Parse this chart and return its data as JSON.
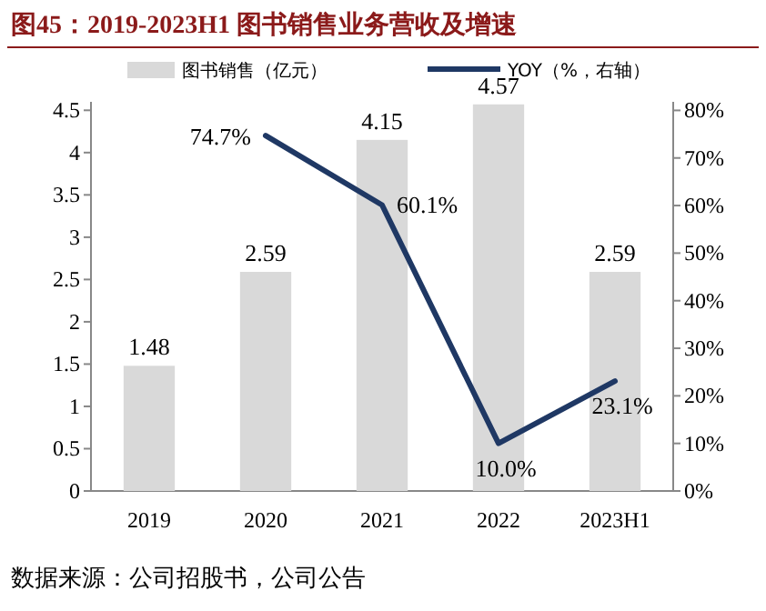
{
  "chart_data": {
    "type": "bar",
    "title": "图45：2019-2023H1 图书销售业务营收及增速",
    "categories": [
      "2019",
      "2020",
      "2021",
      "2022",
      "2023H1"
    ],
    "series": [
      {
        "name": "图书销售（亿元）",
        "color": "#d9d9d9",
        "values": [
          1.48,
          2.59,
          4.15,
          4.57,
          2.59
        ],
        "value_labels": [
          "1.48",
          "2.59",
          "4.15",
          "4.57",
          "2.59"
        ]
      },
      {
        "name": "YOY（%，右轴）",
        "type": "line",
        "axis": "y2",
        "color": "#1f3864",
        "values": [
          null,
          74.7,
          60.1,
          10.0,
          23.1
        ],
        "value_labels": [
          null,
          "74.7%",
          "60.1%",
          "10.0%",
          "23.1%"
        ]
      }
    ],
    "ylim": [
      0,
      4.6
    ],
    "yticks": [
      0,
      0.5,
      1,
      1.5,
      2,
      2.5,
      3,
      3.5,
      4,
      4.5
    ],
    "y2lim": [
      0,
      81.8
    ],
    "y2ticks": [
      {
        "value": 0,
        "label": "0%"
      },
      {
        "value": 10,
        "label": "10%"
      },
      {
        "value": 20,
        "label": "20%"
      },
      {
        "value": 30,
        "label": "30%"
      },
      {
        "value": 40,
        "label": "40%"
      },
      {
        "value": 50,
        "label": "50%"
      },
      {
        "value": 60,
        "label": "60%"
      },
      {
        "value": 70,
        "label": "70%"
      },
      {
        "value": 80,
        "label": "80%"
      }
    ],
    "legend": "top",
    "marker": "none",
    "annotations": [
      "数据来源：公司招股书，公司公告"
    ]
  }
}
